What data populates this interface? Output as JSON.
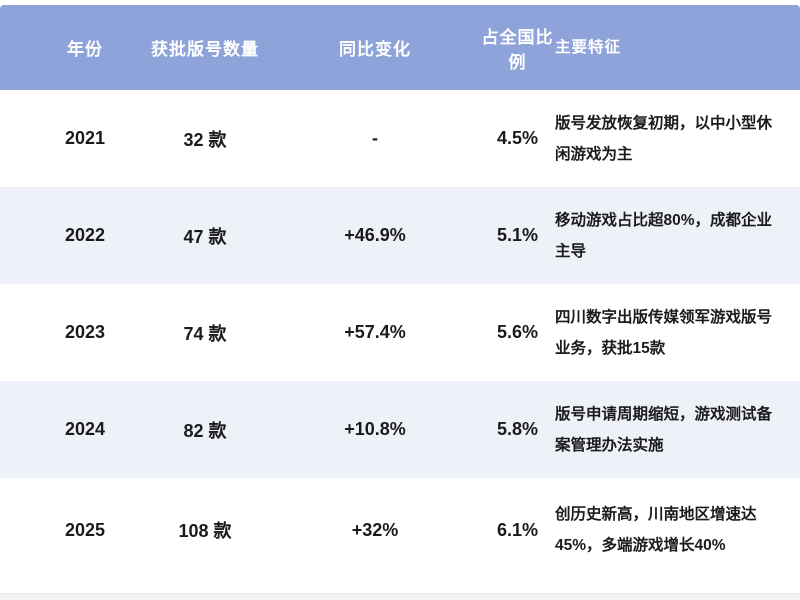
{
  "chart_data": {
    "type": "table",
    "title": "",
    "columns": [
      "年份",
      "获批版号数量",
      "同比变化",
      "占全国比例",
      "主要特征"
    ],
    "rows": [
      {
        "year": "2021",
        "count": "32 款",
        "yoy": "-",
        "share": "4.5%",
        "features": "版号发放恢复初期，以中小型休闲游戏为主"
      },
      {
        "year": "2022",
        "count": "47 款",
        "yoy": "+46.9%",
        "share": "5.1%",
        "features": "移动游戏占比超80%，成都企业主导"
      },
      {
        "year": "2023",
        "count": "74 款",
        "yoy": "+57.4%",
        "share": "5.6%",
        "features": "四川数字出版传媒领军游戏版号业务，获批15款"
      },
      {
        "year": "2024",
        "count": "82 款",
        "yoy": "+10.8%",
        "share": "5.8%",
        "features": "版号申请周期缩短，游戏测试备案管理办法实施"
      },
      {
        "year": "2025",
        "count": "108 款",
        "yoy": "+32%",
        "share": "6.1%",
        "features": "创历史新高，川南地区增速达45%，多端游戏增长40%"
      }
    ]
  },
  "colors": {
    "header_bg": "#8ea3d9",
    "header_text": "#ffffff",
    "row_bg": "#ffffff",
    "row_alt_bg": "#eef1f8",
    "body_text": "#1b1b1b"
  }
}
